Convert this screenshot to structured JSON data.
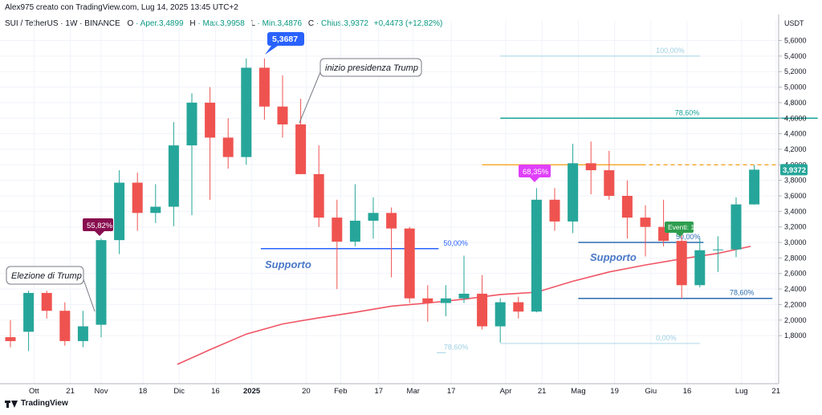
{
  "header": {
    "credit": "Alex975 creato con TradingView.com, Lug 14, 2025 13:45 UTC+2",
    "symbol": "SUI / TetherUS · 1W · BINANCE",
    "open_label": "O",
    "open_value": "· Aper.3,4899",
    "high_label": "H",
    "high_value": "· Max.3,9958",
    "low_label": "L",
    "low_value": "· Min.3,4876",
    "close_label": "C",
    "close_value": "· Chius.3,9372",
    "change": "+0,4473 (+12,82%)"
  },
  "footer": {
    "brand": "TradingView"
  },
  "colors": {
    "up": "#26a69a",
    "down": "#ef5350",
    "ma": "#f05464",
    "fib": "#4aa8c8",
    "fib_strong": "#17a398",
    "orange": "#f5a623",
    "support": "#2962ff"
  },
  "chart_data": {
    "type": "candlestick",
    "price_unit": "USDT",
    "ylim": [
      1.45,
      5.75
    ],
    "y_ticks": [
      "1,8000",
      "2,0000",
      "2,2000",
      "2,4000",
      "2,6000",
      "2,8000",
      "3,0000",
      "3,2000",
      "3,4000",
      "3,6000",
      "3,8000",
      "4,0000",
      "4,2000",
      "4,4000",
      "4,6000",
      "4,8000",
      "5,0000",
      "5,2000",
      "5,4000",
      "5,6000"
    ],
    "x_ticks": [
      {
        "label": "Ott",
        "i": 1.3
      },
      {
        "label": "21",
        "i": 3.3
      },
      {
        "label": "Nov",
        "i": 5.0
      },
      {
        "label": "18",
        "i": 7.3
      },
      {
        "label": "Dic",
        "i": 9.3
      },
      {
        "label": "16",
        "i": 11.3
      },
      {
        "label": "2025",
        "i": 13.3
      },
      {
        "label": "20",
        "i": 16.3
      },
      {
        "label": "Feb",
        "i": 18.2
      },
      {
        "label": "17",
        "i": 20.3
      },
      {
        "label": "Mar",
        "i": 22.2
      },
      {
        "label": "17",
        "i": 24.3
      },
      {
        "label": "Apr",
        "i": 27.3
      },
      {
        "label": "21",
        "i": 29.3
      },
      {
        "label": "Mag",
        "i": 31.3
      },
      {
        "label": "19",
        "i": 33.3
      },
      {
        "label": "Giu",
        "i": 35.3
      },
      {
        "label": "16",
        "i": 37.3
      },
      {
        "label": "Lug",
        "i": 40.3
      },
      {
        "label": "21",
        "i": 42.2
      }
    ],
    "candles": [
      {
        "o": 1.78,
        "h": 2.0,
        "l": 1.65,
        "c": 1.73
      },
      {
        "o": 1.85,
        "h": 2.38,
        "l": 1.6,
        "c": 2.35
      },
      {
        "o": 2.35,
        "h": 2.38,
        "l": 2.02,
        "c": 2.12
      },
      {
        "o": 2.12,
        "h": 2.23,
        "l": 1.67,
        "c": 1.73
      },
      {
        "o": 1.73,
        "h": 2.12,
        "l": 1.65,
        "c": 1.92
      },
      {
        "o": 1.94,
        "h": 3.05,
        "l": 1.78,
        "c": 3.03
      },
      {
        "o": 3.03,
        "h": 3.93,
        "l": 2.85,
        "c": 3.77
      },
      {
        "o": 3.77,
        "h": 3.9,
        "l": 3.15,
        "c": 3.38
      },
      {
        "o": 3.38,
        "h": 3.75,
        "l": 3.25,
        "c": 3.46
      },
      {
        "o": 3.46,
        "h": 4.55,
        "l": 3.21,
        "c": 4.25
      },
      {
        "o": 4.25,
        "h": 4.92,
        "l": 3.35,
        "c": 4.8
      },
      {
        "o": 4.8,
        "h": 5.0,
        "l": 3.55,
        "c": 4.35
      },
      {
        "o": 4.35,
        "h": 4.6,
        "l": 3.95,
        "c": 4.1
      },
      {
        "o": 4.1,
        "h": 5.37,
        "l": 4.0,
        "c": 5.25
      },
      {
        "o": 5.25,
        "h": 5.37,
        "l": 4.58,
        "c": 4.75
      },
      {
        "o": 4.75,
        "h": 5.15,
        "l": 4.35,
        "c": 4.52
      },
      {
        "o": 4.52,
        "h": 4.85,
        "l": 3.88,
        "c": 3.88
      },
      {
        "o": 3.88,
        "h": 4.25,
        "l": 3.2,
        "c": 3.32
      },
      {
        "o": 3.32,
        "h": 3.55,
        "l": 2.4,
        "c": 3.01
      },
      {
        "o": 3.01,
        "h": 3.75,
        "l": 2.95,
        "c": 3.28
      },
      {
        "o": 3.28,
        "h": 3.58,
        "l": 3.05,
        "c": 3.38
      },
      {
        "o": 3.38,
        "h": 3.45,
        "l": 2.55,
        "c": 3.18
      },
      {
        "o": 3.18,
        "h": 3.2,
        "l": 2.22,
        "c": 2.28
      },
      {
        "o": 2.28,
        "h": 2.45,
        "l": 1.98,
        "c": 2.22
      },
      {
        "o": 2.22,
        "h": 2.45,
        "l": 2.05,
        "c": 2.28
      },
      {
        "o": 2.28,
        "h": 2.83,
        "l": 2.22,
        "c": 2.34
      },
      {
        "o": 2.34,
        "h": 2.58,
        "l": 1.88,
        "c": 1.92
      },
      {
        "o": 1.92,
        "h": 2.28,
        "l": 1.71,
        "c": 2.23
      },
      {
        "o": 2.23,
        "h": 2.3,
        "l": 2.02,
        "c": 2.11
      },
      {
        "o": 2.11,
        "h": 3.7,
        "l": 2.1,
        "c": 3.55
      },
      {
        "o": 3.55,
        "h": 3.7,
        "l": 3.15,
        "c": 3.27
      },
      {
        "o": 3.27,
        "h": 4.27,
        "l": 3.12,
        "c": 4.02
      },
      {
        "o": 4.02,
        "h": 4.3,
        "l": 3.62,
        "c": 3.93
      },
      {
        "o": 3.93,
        "h": 4.18,
        "l": 3.55,
        "c": 3.6
      },
      {
        "o": 3.6,
        "h": 3.8,
        "l": 3.05,
        "c": 3.32
      },
      {
        "o": 3.32,
        "h": 3.48,
        "l": 2.82,
        "c": 3.2
      },
      {
        "o": 3.2,
        "h": 3.55,
        "l": 2.95,
        "c": 3.02
      },
      {
        "o": 3.02,
        "h": 3.18,
        "l": 2.28,
        "c": 2.45
      },
      {
        "o": 2.45,
        "h": 3.05,
        "l": 2.42,
        "c": 2.9
      },
      {
        "o": 2.9,
        "h": 3.08,
        "l": 2.62,
        "c": 2.91
      },
      {
        "o": 2.91,
        "h": 3.58,
        "l": 2.81,
        "c": 3.49
      },
      {
        "o": 3.49,
        "h": 3.996,
        "l": 3.4876,
        "c": 3.9372
      }
    ],
    "moving_average": [
      {
        "i": 9.2,
        "v": 1.43
      },
      {
        "i": 11.0,
        "v": 1.62
      },
      {
        "i": 13.0,
        "v": 1.82
      },
      {
        "i": 15.0,
        "v": 1.95
      },
      {
        "i": 17.0,
        "v": 2.03
      },
      {
        "i": 19.0,
        "v": 2.1
      },
      {
        "i": 21.0,
        "v": 2.18
      },
      {
        "i": 23.0,
        "v": 2.22
      },
      {
        "i": 25.0,
        "v": 2.27
      },
      {
        "i": 27.0,
        "v": 2.33
      },
      {
        "i": 29.0,
        "v": 2.36
      },
      {
        "i": 31.0,
        "v": 2.5
      },
      {
        "i": 33.0,
        "v": 2.62
      },
      {
        "i": 35.0,
        "v": 2.71
      },
      {
        "i": 37.0,
        "v": 2.79
      },
      {
        "i": 39.0,
        "v": 2.86
      },
      {
        "i": 40.8,
        "v": 2.95
      }
    ],
    "fib_levels": [
      {
        "label": "100,00%",
        "price": 5.4,
        "from": 27.0,
        "to": 38.0,
        "color": "#4aa8c8",
        "alpha": 0.45
      },
      {
        "label": "78,60%",
        "price": 4.6,
        "from": 27.0,
        "to": 44.5,
        "color": "#17a398",
        "alpha": 1.0
      },
      {
        "label": "50,00%",
        "price": 2.92,
        "from": 13.8,
        "to": 23.6,
        "color": "#2962ff",
        "alpha": 1.0
      },
      {
        "label": "50,00%",
        "price": 3.0,
        "from": 31.3,
        "to": 38.2,
        "color": "#2b6cb0",
        "alpha": 1.0
      },
      {
        "label": "78,60%",
        "price": 2.28,
        "from": 31.3,
        "to": 42.0,
        "color": "#2b6cb0",
        "alpha": 1.0
      },
      {
        "label": "0,00%",
        "price": 1.7,
        "from": 27.0,
        "to": 38.0,
        "color": "#4aa8c8",
        "alpha": 0.45
      },
      {
        "label": "78,60%",
        "price": 1.58,
        "from": 23.5,
        "to": 24.0,
        "color": "#4aa8c8",
        "alpha": 0.5
      }
    ],
    "resistance_line": {
      "price": 4.0,
      "from": 26.0,
      "to": 44.5
    },
    "annotations": {
      "callout_trump_election": "Elezione di Trump",
      "callout_trump_presidency": "inizio presidenza Trump",
      "support_left": "Supporto",
      "support_right": "Supporto",
      "badge_max": "5,3687",
      "badge_left_pct": "55,82%",
      "badge_mid_pct": "68,35%",
      "badge_events": "Eventi: 1",
      "last_price": "3,9372"
    }
  }
}
